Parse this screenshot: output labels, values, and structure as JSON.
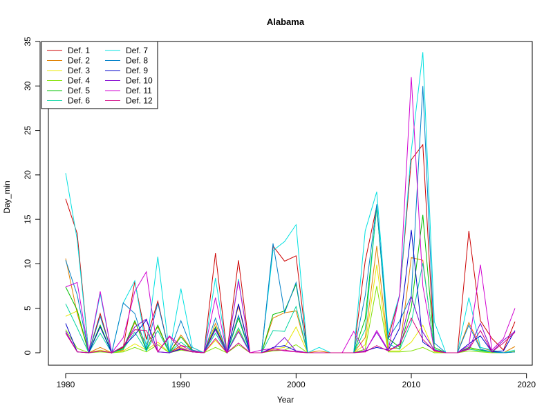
{
  "chart_data": {
    "type": "line",
    "title": "Alabama",
    "xlabel": "Year",
    "ylabel": "Day_min",
    "xlim": [
      1978.5,
      2020.5
    ],
    "ylim": [
      -1.4,
      35
    ],
    "xticks": [
      1980,
      1990,
      2000,
      2010,
      2020
    ],
    "yticks": [
      0,
      5,
      10,
      15,
      20,
      25,
      30,
      35
    ],
    "legend_position": "top-left",
    "legend_columns": 2,
    "x": [
      1980,
      1981,
      1982,
      1983,
      1984,
      1985,
      1986,
      1987,
      1988,
      1989,
      1990,
      1991,
      1992,
      1993,
      1994,
      1995,
      1996,
      1997,
      1998,
      1999,
      2000,
      2001,
      2002,
      2003,
      2004,
      2005,
      2006,
      2007,
      2008,
      2009,
      2010,
      2011,
      2012,
      2013,
      2014,
      2015,
      2016,
      2017,
      2018,
      2019
    ],
    "series": [
      {
        "name": "Def. 1",
        "color": "#cc0000",
        "values": [
          17.3,
          13.4,
          0,
          4.4,
          0,
          0.6,
          8.0,
          1.5,
          5.8,
          0,
          0.8,
          0.6,
          0,
          11.2,
          0,
          10.4,
          0,
          0,
          12.0,
          10.3,
          10.9,
          0,
          0,
          0,
          0,
          0,
          10.3,
          16.5,
          1.6,
          6.5,
          21.7,
          23.4,
          0.3,
          0,
          0,
          13.7,
          3.6,
          1.6,
          0.3,
          3.5
        ]
      },
      {
        "name": "Def. 2",
        "color": "#e08000",
        "values": [
          10.6,
          4.4,
          0,
          0.6,
          0,
          0.3,
          3.4,
          1.0,
          2.9,
          0,
          2.0,
          0.3,
          0,
          3.3,
          0,
          5.3,
          0,
          0,
          3.9,
          4.5,
          4.7,
          0,
          0.2,
          0,
          0,
          0,
          1.7,
          12.0,
          0.5,
          0.5,
          10.7,
          10.4,
          0.2,
          0,
          0,
          3.4,
          0.6,
          0.2,
          0,
          0.7
        ]
      },
      {
        "name": "Def. 3",
        "color": "#e8e800",
        "values": [
          4.1,
          4.7,
          0,
          0.3,
          0,
          0.2,
          1.0,
          0.3,
          1.2,
          0,
          0.6,
          0.1,
          0,
          1.4,
          0,
          2.6,
          0,
          0,
          0.4,
          0.6,
          2.9,
          0,
          0,
          0,
          0,
          0,
          0.9,
          9.9,
          0.2,
          0.2,
          1.2,
          3.1,
          0.1,
          0,
          0,
          0.5,
          0.2,
          0,
          0,
          0.2
        ]
      },
      {
        "name": "Def. 4",
        "color": "#80e000",
        "values": [
          2.6,
          0.5,
          0,
          0.1,
          0,
          0.1,
          0.6,
          0.1,
          0.9,
          0,
          0.3,
          0.1,
          0,
          0.6,
          0,
          0.9,
          0,
          0,
          0.2,
          0.3,
          0.9,
          0,
          0,
          0,
          0,
          0,
          0.4,
          7.5,
          0.1,
          0.1,
          0.2,
          0.6,
          0,
          0,
          0,
          0.2,
          0.1,
          0,
          0,
          0.1
        ]
      },
      {
        "name": "Def. 5",
        "color": "#00c000",
        "values": [
          7.4,
          4.8,
          0,
          3.1,
          0,
          0.5,
          3.6,
          0.3,
          3.1,
          0,
          1.8,
          0.2,
          0,
          2.9,
          0,
          3.9,
          0,
          0,
          4.3,
          4.7,
          7.7,
          0,
          0,
          0,
          0,
          0,
          3.8,
          16.3,
          1.6,
          0.6,
          5.1,
          15.5,
          0.6,
          0,
          0,
          0.6,
          0.3,
          0.1,
          0,
          0.1
        ]
      },
      {
        "name": "Def. 6",
        "color": "#00d4a0",
        "values": [
          5.5,
          2.8,
          0,
          2.2,
          0,
          0.4,
          2.3,
          0.2,
          2.5,
          0,
          1.2,
          0.2,
          0,
          2.2,
          0,
          2.8,
          0,
          0,
          2.5,
          2.4,
          5.2,
          0,
          0,
          0,
          0,
          0,
          2.6,
          16.5,
          1.0,
          0.4,
          3.4,
          10.1,
          0.4,
          0,
          0,
          0.4,
          0.2,
          0.1,
          0,
          0.1
        ]
      },
      {
        "name": "Def. 7",
        "color": "#00e0e0",
        "values": [
          20.2,
          12.7,
          0,
          6.6,
          0,
          5.6,
          8.1,
          0.6,
          10.8,
          0,
          7.2,
          0.6,
          0,
          8.4,
          0,
          8.3,
          0,
          0,
          11.5,
          12.5,
          14.4,
          0,
          0.6,
          0,
          0,
          0,
          13.7,
          18.1,
          2.1,
          6.6,
          22.7,
          33.8,
          3.5,
          0,
          0,
          6.2,
          0.6,
          0.3,
          0,
          0.3
        ]
      },
      {
        "name": "Def. 8",
        "color": "#0080c8",
        "values": [
          10.4,
          6.5,
          0,
          4.1,
          0,
          5.6,
          4.4,
          0.4,
          5.6,
          0,
          3.6,
          0.3,
          0,
          3.9,
          0,
          4.2,
          0,
          0,
          12.3,
          4.5,
          7.9,
          0,
          0,
          0,
          0,
          0,
          6.4,
          16.7,
          1.6,
          3.6,
          6.4,
          30.0,
          1.1,
          0,
          0,
          3.1,
          0.4,
          0.1,
          0,
          0.1
        ]
      },
      {
        "name": "Def. 9",
        "color": "#0000c8",
        "values": [
          3.3,
          0.1,
          0,
          2.9,
          0,
          0.7,
          2.0,
          3.7,
          0.1,
          0,
          0.4,
          0.1,
          0,
          2.7,
          0,
          5.5,
          0,
          0,
          0.6,
          0.8,
          0.2,
          0,
          0,
          0,
          0,
          0,
          0.2,
          0.6,
          0.3,
          2.8,
          13.8,
          1.2,
          0.3,
          0,
          0,
          1.0,
          1.9,
          0.1,
          0.2,
          2.5
        ]
      },
      {
        "name": "Def. 10",
        "color": "#8000d0",
        "values": [
          2.4,
          0.1,
          0,
          0.2,
          0,
          0.7,
          2.9,
          3.8,
          0.1,
          0,
          0.5,
          0.1,
          0,
          2.6,
          0,
          2.4,
          0,
          0,
          0.5,
          1.7,
          0.2,
          0,
          0,
          0,
          0,
          0,
          0.2,
          2.3,
          0.2,
          1.0,
          6.3,
          2.3,
          0.3,
          0,
          0,
          0.5,
          3.3,
          0.1,
          1.4,
          2.4
        ]
      },
      {
        "name": "Def. 11",
        "color": "#d000d0",
        "values": [
          7.4,
          7.9,
          0.1,
          6.9,
          0,
          1.7,
          6.9,
          9.1,
          0.1,
          1.9,
          0.8,
          0.2,
          0,
          6.2,
          0,
          8.1,
          0,
          0.3,
          0.5,
          0.2,
          0.1,
          0,
          0,
          0,
          0,
          2.4,
          0.1,
          2.5,
          0.3,
          6.6,
          31.0,
          7.5,
          0.3,
          0,
          0,
          0.8,
          9.9,
          0.3,
          1.6,
          5.0
        ]
      },
      {
        "name": "Def. 12",
        "color": "#d00080",
        "values": [
          2.2,
          0.1,
          0,
          0.2,
          0,
          0.7,
          2.6,
          2.5,
          0.1,
          1.8,
          0.4,
          0.1,
          0,
          1.6,
          0,
          1.1,
          0,
          0,
          0.3,
          0.3,
          0.1,
          0,
          0,
          0,
          0,
          0,
          0.1,
          0.8,
          0.2,
          0.9,
          3.9,
          1.5,
          0.2,
          0,
          0,
          0.4,
          2.5,
          0.1,
          1.1,
          2.3
        ]
      }
    ]
  }
}
